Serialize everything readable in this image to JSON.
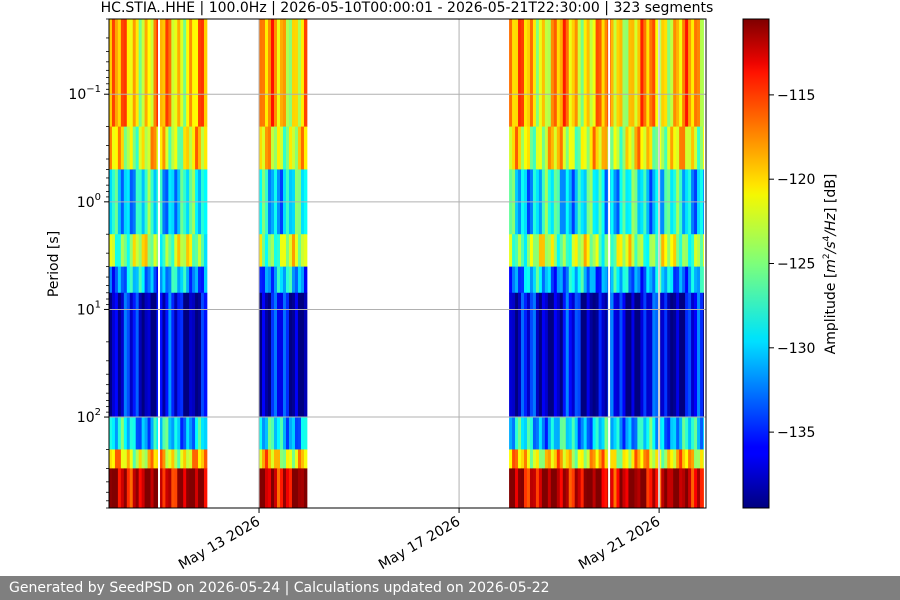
{
  "chart_data": {
    "type": "heatmap",
    "title": "HC.STIA..HHE | 100.0Hz | 2026-05-10T00:00:01 - 2026-05-21T22:30:00 | 323 segments",
    "ylabel": "Period [s]",
    "xlabel": "",
    "x_range": [
      "2026-05-10T00:00:01",
      "2026-05-21T22:30:00"
    ],
    "y_range_seconds": [
      0.02,
      700
    ],
    "y_scale": "log",
    "y_inverted": true,
    "grid": true,
    "x_ticks": [
      {
        "date": "2026-05-13",
        "label": "May 13 2026"
      },
      {
        "date": "2026-05-17",
        "label": "May 17 2026"
      },
      {
        "date": "2026-05-21",
        "label": "May 21 2026"
      }
    ],
    "y_ticks": [
      {
        "value": 0.1,
        "base": "10",
        "exp": "−1"
      },
      {
        "value": 1,
        "base": "10",
        "exp": "0"
      },
      {
        "value": 10,
        "base": "10",
        "exp": "1"
      },
      {
        "value": 100,
        "base": "10",
        "exp": "2"
      }
    ],
    "data_blocks": [
      {
        "start": "2026-05-10T00:00:01",
        "end": "2026-05-11T23:00:00"
      },
      {
        "start": "2026-05-13T00:00:00",
        "end": "2026-05-13T23:00:00"
      },
      {
        "start": "2026-05-18T00:00:00",
        "end": "2026-05-21T22:30:00"
      }
    ],
    "gaps_in_blocks": [
      "2026-05-11T00:00:00",
      "2026-05-20T00:00:00",
      "2026-05-21T00:00:00",
      "2026-05-21T22:00:00"
    ],
    "period_bands": [
      {
        "from": 0.02,
        "to": 0.2,
        "level_db": -120
      },
      {
        "from": 0.2,
        "to": 0.5,
        "level_db": -122
      },
      {
        "from": 0.5,
        "to": 2,
        "level_db": -129
      },
      {
        "from": 2,
        "to": 4,
        "level_db": -124
      },
      {
        "from": 4,
        "to": 7,
        "level_db": -131
      },
      {
        "from": 7,
        "to": 100,
        "level_db": -137
      },
      {
        "from": 100,
        "to": 200,
        "level_db": -130
      },
      {
        "from": 200,
        "to": 300,
        "level_db": -121
      },
      {
        "from": 300,
        "to": 700,
        "level_db": -112
      }
    ],
    "colorbar": {
      "label_prefix": "Amplitude [",
      "label_m": "m",
      "label_sup1": "2",
      "label_mid": "/s",
      "label_sup2": "4",
      "label_hz": "/Hz",
      "label_suffix": "] [dB]",
      "range_db": [
        -139.5,
        -110.5
      ],
      "ticks": [
        -115,
        -120,
        -125,
        -130,
        -135
      ],
      "tick_labels": [
        "−115",
        "−120",
        "−125",
        "−130",
        "−135"
      ],
      "colormap": "jet"
    }
  },
  "footer": {
    "text": "Generated by SeedPSD on 2026-05-24 | Calculations updated on 2026-05-22"
  },
  "colors": {
    "footer_bg": "#7f7f7f",
    "grid": "#b0b0b0"
  }
}
